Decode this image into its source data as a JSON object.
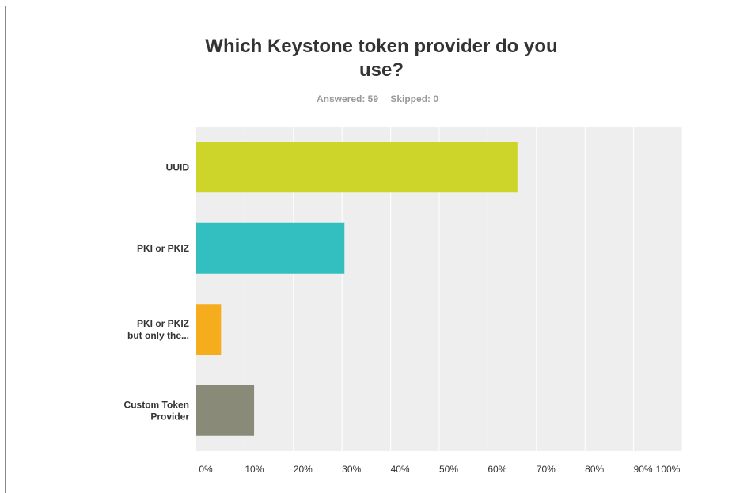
{
  "title": "Which Keystone token provider do you use?",
  "summary": {
    "answered": "Answered: 59",
    "skipped": "Skipped: 0"
  },
  "chart_data": {
    "type": "bar",
    "orientation": "horizontal",
    "title": "Which Keystone token provider do you use?",
    "categories": [
      [
        "UUID"
      ],
      [
        "PKI or PKIZ"
      ],
      [
        "PKI or PKIZ",
        "but only the..."
      ],
      [
        "Custom Token",
        "Provider"
      ]
    ],
    "values": [
      66.1,
      30.5,
      5.1,
      11.9
    ],
    "colors": [
      "#cdd42a",
      "#33bfbf",
      "#f5ac1d",
      "#8a8a78"
    ],
    "xlim": [
      0,
      100
    ],
    "xticks": [
      "0%",
      "10%",
      "20%",
      "30%",
      "40%",
      "50%",
      "60%",
      "70%",
      "80%",
      "90%",
      "100%"
    ],
    "grid": true,
    "plot_background": "#eeeeee"
  }
}
